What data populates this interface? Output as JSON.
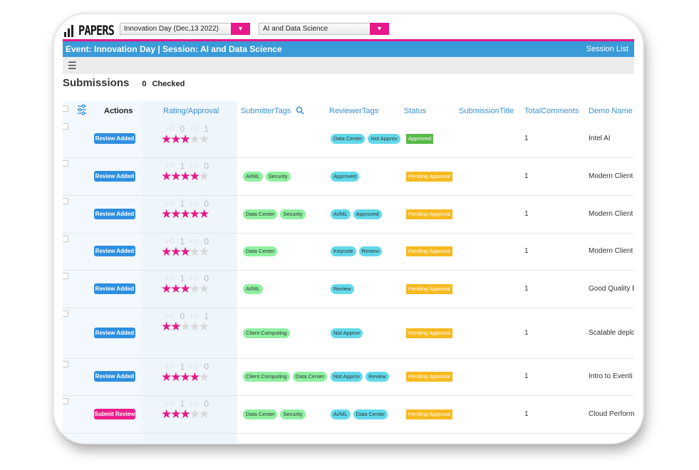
{
  "app": {
    "logo_text": "PAPERS"
  },
  "selectors": {
    "event": "Innovation Day (Dec,13 2022)",
    "session": "AI and Data Science"
  },
  "header": {
    "title": "Event: Innovation Day | Session: AI and Data Science",
    "session_list": "Session List"
  },
  "toolbar": {
    "menu_icon": "hamburger-icon"
  },
  "submissions": {
    "title": "Submissions",
    "checked_count": "0",
    "checked_label": "Checked"
  },
  "columns": {
    "actions": "Actions",
    "rating": "Rating/Approval",
    "submitter_tags": "SubmitterTags",
    "reviewer_tags": "ReviewerTags",
    "status": "Status",
    "title": "SubmissionTitle",
    "comments": "TotalComments",
    "demo": "Demo Name"
  },
  "colors": {
    "accent": "#e8178a",
    "header": "#3a9bd8",
    "approved": "#58b94a",
    "pending": "#f7b920"
  },
  "rows": [
    {
      "action": "Review Added",
      "action_style": "blue",
      "up": "0",
      "down": "1",
      "stars": 3,
      "submitter_tags": [],
      "reviewer_tags": [
        "Data Center",
        "Not Approv"
      ],
      "status": "Approved",
      "status_style": "ok",
      "comments": "1",
      "demo": "Intel AI"
    },
    {
      "action": "Review Added",
      "action_style": "blue",
      "up": "1",
      "down": "0",
      "stars": 4,
      "submitter_tags": [
        "AI/ML",
        "Security"
      ],
      "reviewer_tags": [
        "Approved"
      ],
      "status": "Pending Approval",
      "status_style": "pend",
      "comments": "1",
      "demo": "Modern Client"
    },
    {
      "action": "Review Added",
      "action_style": "blue",
      "up": "1",
      "down": "0",
      "stars": 5,
      "submitter_tags": [
        "Data Center",
        "Security"
      ],
      "reviewer_tags": [
        "AI/ML",
        "Approved"
      ],
      "status": "Pending Approval",
      "status_style": "pend",
      "comments": "1",
      "demo": "Modern Client"
    },
    {
      "action": "Review Added",
      "action_style": "blue",
      "up": "1",
      "down": "0",
      "stars": 3,
      "submitter_tags": [
        "Data Center"
      ],
      "reviewer_tags": [
        "Keynote",
        "Review"
      ],
      "status": "Pending Approval",
      "status_style": "pend",
      "comments": "1",
      "demo": "Modern Client"
    },
    {
      "action": "Review Added",
      "action_style": "blue",
      "up": "1",
      "down": "0",
      "stars": 3,
      "submitter_tags": [
        "AI/ML"
      ],
      "reviewer_tags": [
        "Review"
      ],
      "status": "Pending Approval",
      "status_style": "pend",
      "comments": "1",
      "demo": "Good Quality E"
    },
    {
      "action": "Review Added",
      "action_style": "blue",
      "up": "0",
      "down": "1",
      "stars": 2,
      "submitter_tags": [
        "Client Computing"
      ],
      "reviewer_tags": [
        "Not Approv"
      ],
      "status": "Pending Approval",
      "status_style": "pend",
      "comments": "1",
      "demo": "Scalable deplo"
    },
    {
      "action": "Review Added",
      "action_style": "blue",
      "up": "1",
      "down": "0",
      "stars": 4,
      "submitter_tags": [
        "Client Computing",
        "Data Center"
      ],
      "reviewer_tags": [
        "Not Approv",
        "Review"
      ],
      "status": "Pending Approval",
      "status_style": "pend",
      "comments": "1",
      "demo": "Intro to Eventi I"
    },
    {
      "action": "Submit Review",
      "action_style": "pink",
      "up": "1",
      "down": "0",
      "stars": 3,
      "submitter_tags": [
        "Data Center",
        "Security"
      ],
      "reviewer_tags": [
        "AI/ML",
        "Data Center"
      ],
      "status": "Pending Approval",
      "status_style": "pend",
      "comments": "1",
      "demo": "Cloud Perform"
    }
  ]
}
